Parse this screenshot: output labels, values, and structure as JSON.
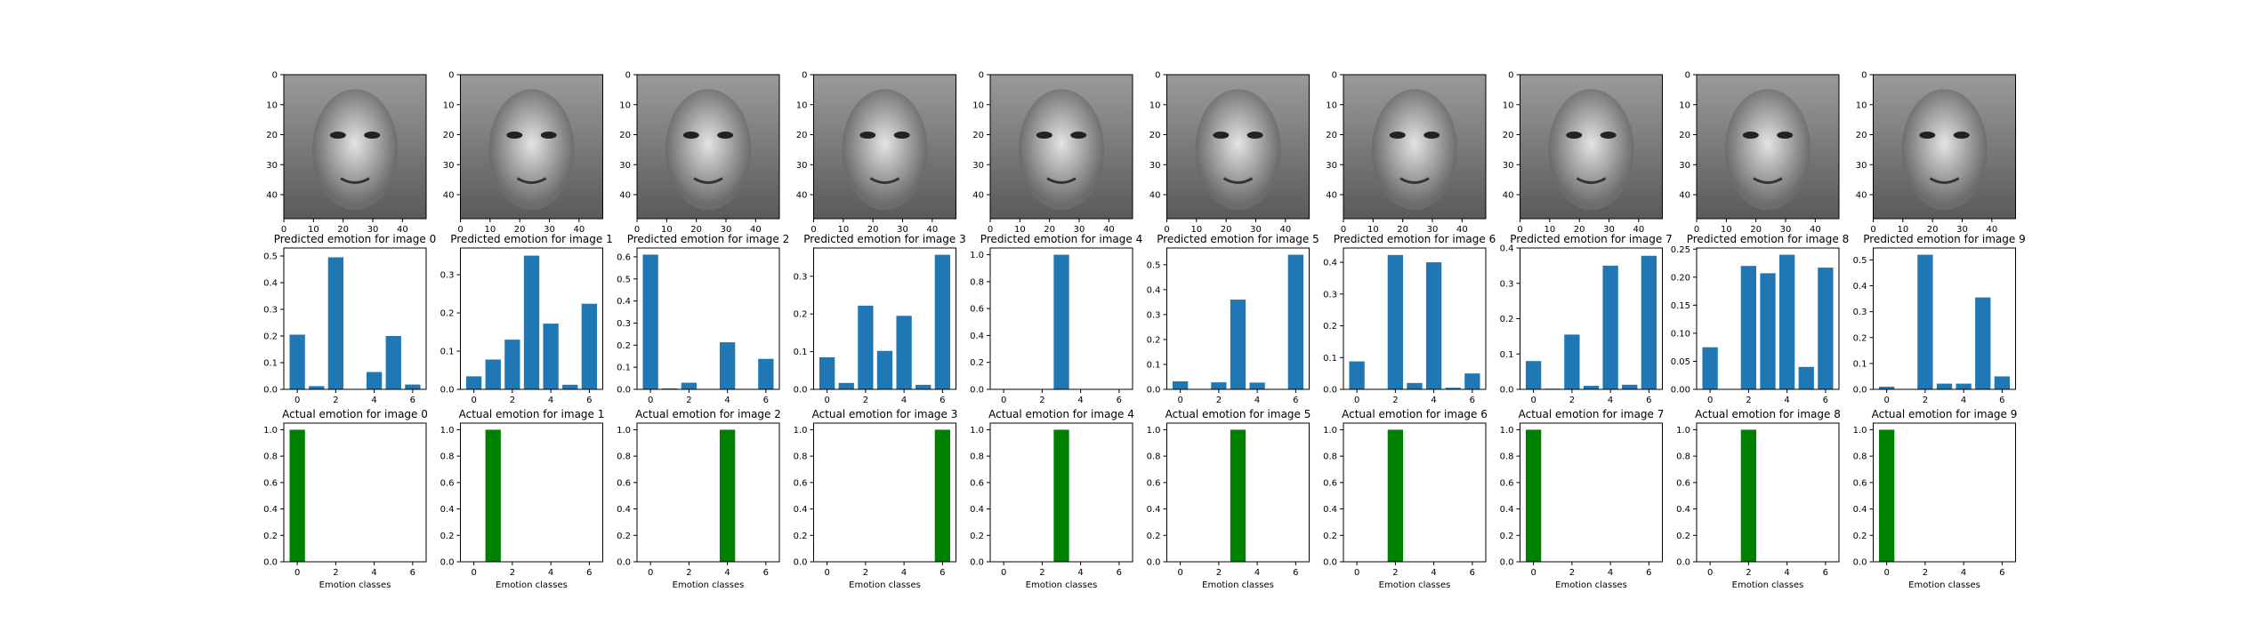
{
  "chart_data": {
    "type": "bar",
    "figure_rows": [
      "image",
      "predicted",
      "actual"
    ],
    "colors": {
      "predicted": "#1f77b4",
      "actual": "#008000"
    },
    "image_axes": {
      "xlim": [
        0,
        48
      ],
      "ylim": [
        48,
        0
      ],
      "xticks": [
        0,
        10,
        20,
        30,
        40
      ],
      "yticks": [
        0,
        10,
        20,
        30,
        40
      ]
    },
    "predicted_title_prefix": "Predicted emotion for image",
    "actual_title_prefix": "Actual emotion for image",
    "xlabel_actual": "Emotion classes",
    "x_ticks": [
      0,
      2,
      4,
      6
    ],
    "categories": [
      0,
      1,
      2,
      3,
      4,
      5,
      6
    ],
    "panels": [
      {
        "index": "0",
        "predicted_title": "Predicted emotion for image 0",
        "actual_title": "Actual emotion for image 0",
        "predicted": [
          0.205,
          0.012,
          0.495,
          0.0,
          0.065,
          0.2,
          0.018
        ],
        "predicted_ylim": [
          0,
          0.53
        ],
        "predicted_yticks": [
          "0.0",
          "0.1",
          "0.2",
          "0.3",
          "0.4",
          "0.5"
        ],
        "predicted_ytick_values": [
          0,
          0.1,
          0.2,
          0.3,
          0.4,
          0.5
        ],
        "actual": [
          1,
          0,
          0,
          0,
          0,
          0,
          0
        ]
      },
      {
        "index": "1",
        "predicted_title": "Predicted emotion for image 1",
        "actual_title": "Actual emotion for image 1",
        "predicted": [
          0.034,
          0.078,
          0.13,
          0.35,
          0.172,
          0.012,
          0.224
        ],
        "predicted_ylim": [
          0,
          0.37
        ],
        "predicted_yticks": [
          "0.0",
          "0.1",
          "0.2",
          "0.3"
        ],
        "predicted_ytick_values": [
          0,
          0.1,
          0.2,
          0.3
        ],
        "actual": [
          0,
          1,
          0,
          0,
          0,
          0,
          0
        ]
      },
      {
        "index": "2",
        "predicted_title": "Predicted emotion for image 2",
        "actual_title": "Actual emotion for image 2",
        "predicted": [
          0.61,
          0.004,
          0.03,
          0.0,
          0.213,
          0.0,
          0.138
        ],
        "predicted_ylim": [
          0,
          0.64
        ],
        "predicted_yticks": [
          "0.0",
          "0.1",
          "0.2",
          "0.3",
          "0.4",
          "0.5",
          "0.6"
        ],
        "predicted_ytick_values": [
          0,
          0.1,
          0.2,
          0.3,
          0.4,
          0.5,
          0.6
        ],
        "actual": [
          0,
          0,
          0,
          0,
          1,
          0,
          0
        ]
      },
      {
        "index": "3",
        "predicted_title": "Predicted emotion for image 3",
        "actual_title": "Actual emotion for image 3",
        "predicted": [
          0.085,
          0.017,
          0.222,
          0.102,
          0.195,
          0.012,
          0.357
        ],
        "predicted_ylim": [
          0,
          0.375
        ],
        "predicted_yticks": [
          "0.0",
          "0.1",
          "0.2",
          "0.3"
        ],
        "predicted_ytick_values": [
          0,
          0.1,
          0.2,
          0.3
        ],
        "actual": [
          0,
          0,
          0,
          0,
          0,
          0,
          1
        ]
      },
      {
        "index": "4",
        "predicted_title": "Predicted emotion for image 4",
        "actual_title": "Actual emotion for image 4",
        "predicted": [
          0,
          0,
          0,
          1.0,
          0,
          0,
          0
        ],
        "predicted_ylim": [
          0,
          1.05
        ],
        "predicted_yticks": [
          "0.0",
          "0.2",
          "0.4",
          "0.6",
          "0.8",
          "1.0"
        ],
        "predicted_ytick_values": [
          0,
          0.2,
          0.4,
          0.6,
          0.8,
          1.0
        ],
        "actual": [
          0,
          0,
          0,
          1,
          0,
          0,
          0
        ]
      },
      {
        "index": "5",
        "predicted_title": "Predicted emotion for image 5",
        "actual_title": "Actual emotion for image 5",
        "predicted": [
          0.032,
          0.0,
          0.028,
          0.36,
          0.027,
          0.0,
          0.54
        ],
        "predicted_ylim": [
          0,
          0.567
        ],
        "predicted_yticks": [
          "0.0",
          "0.1",
          "0.2",
          "0.3",
          "0.4",
          "0.5"
        ],
        "predicted_ytick_values": [
          0,
          0.1,
          0.2,
          0.3,
          0.4,
          0.5
        ],
        "actual": [
          0,
          0,
          0,
          1,
          0,
          0,
          0
        ]
      },
      {
        "index": "6",
        "predicted_title": "Predicted emotion for image 6",
        "actual_title": "Actual emotion for image 6",
        "predicted": [
          0.088,
          0.0,
          0.423,
          0.02,
          0.4,
          0.005,
          0.05
        ],
        "predicted_ylim": [
          0,
          0.445
        ],
        "predicted_yticks": [
          "0.0",
          "0.1",
          "0.2",
          "0.3",
          "0.4"
        ],
        "predicted_ytick_values": [
          0,
          0.1,
          0.2,
          0.3,
          0.4
        ],
        "actual": [
          0,
          0,
          1,
          0,
          0,
          0,
          0
        ]
      },
      {
        "index": "7",
        "predicted_title": "Predicted emotion for image 7",
        "actual_title": "Actual emotion for image 7",
        "predicted": [
          0.08,
          0.002,
          0.155,
          0.01,
          0.35,
          0.013,
          0.378
        ],
        "predicted_ylim": [
          0,
          0.4
        ],
        "predicted_yticks": [
          "0.0",
          "0.1",
          "0.2",
          "0.3",
          "0.4"
        ],
        "predicted_ytick_values": [
          0,
          0.1,
          0.2,
          0.3,
          0.4
        ],
        "actual": [
          1,
          0,
          0,
          0,
          0,
          0,
          0
        ]
      },
      {
        "index": "8",
        "predicted_title": "Predicted emotion for image 8",
        "actual_title": "Actual emotion for image 8",
        "predicted": [
          0.075,
          0.0,
          0.22,
          0.207,
          0.24,
          0.04,
          0.217
        ],
        "predicted_ylim": [
          0,
          0.252
        ],
        "predicted_yticks": [
          "0.00",
          "0.05",
          "0.10",
          "0.15",
          "0.20",
          "0.25"
        ],
        "predicted_ytick_values": [
          0,
          0.05,
          0.1,
          0.15,
          0.2,
          0.25
        ],
        "actual": [
          0,
          0,
          1,
          0,
          0,
          0,
          0
        ]
      },
      {
        "index": "9",
        "predicted_title": "Predicted emotion for image 9",
        "actual_title": "Actual emotion for image 9",
        "predicted": [
          0.01,
          0.0,
          0.52,
          0.022,
          0.022,
          0.355,
          0.05
        ],
        "predicted_ylim": [
          0,
          0.546
        ],
        "predicted_yticks": [
          "0.0",
          "0.1",
          "0.2",
          "0.3",
          "0.4",
          "0.5"
        ],
        "predicted_ytick_values": [
          0,
          0.1,
          0.2,
          0.3,
          0.4,
          0.5
        ],
        "actual": [
          1,
          0,
          0,
          0,
          0,
          0,
          0
        ]
      }
    ],
    "actual_ylim": [
      0,
      1.05
    ],
    "actual_yticks": [
      "0.0",
      "0.2",
      "0.4",
      "0.6",
      "0.8",
      "1.0"
    ],
    "actual_ytick_values": [
      0,
      0.2,
      0.4,
      0.6,
      0.8,
      1.0
    ]
  }
}
